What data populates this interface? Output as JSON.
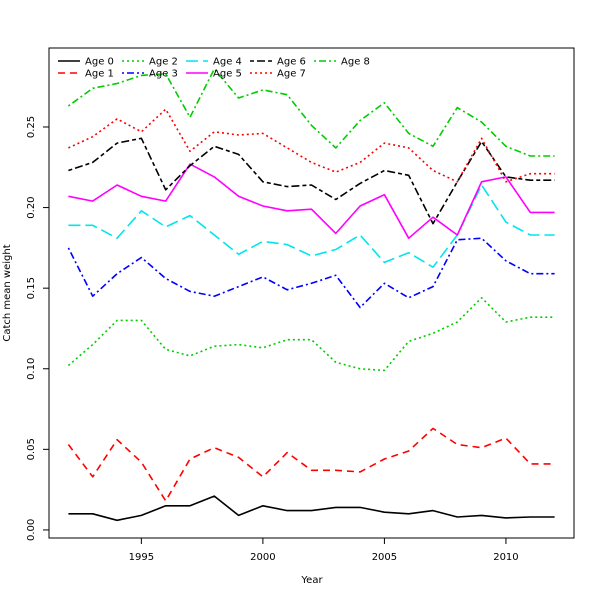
{
  "chart_data": {
    "type": "line",
    "title": "",
    "xlabel": "Year",
    "ylabel": "Catch mean weight",
    "xlim": [
      1991.2,
      2012.8
    ],
    "ylim": [
      -0.005,
      0.299
    ],
    "xticks": [
      1995,
      2000,
      2005,
      2010
    ],
    "yticks": [
      0.0,
      0.05,
      0.1,
      0.15,
      0.2,
      0.25
    ],
    "ytick_labels": [
      "0.00",
      "0.05",
      "0.10",
      "0.15",
      "0.20",
      "0.25"
    ],
    "grid": false,
    "legend_position": "top-left",
    "x": [
      1992,
      1993,
      1994,
      1995,
      1996,
      1997,
      1998,
      1999,
      2000,
      2001,
      2002,
      2003,
      2004,
      2005,
      2006,
      2007,
      2008,
      2009,
      2010,
      2011,
      2012
    ],
    "series": [
      {
        "name": "Age 0",
        "color": "#000000",
        "dash": "solid",
        "values": [
          0.01,
          0.01,
          0.006,
          0.009,
          0.015,
          0.015,
          0.021,
          0.009,
          0.015,
          0.012,
          0.012,
          0.014,
          0.014,
          0.011,
          0.01,
          0.012,
          0.008,
          0.009,
          0.0075,
          0.008,
          0.008
        ]
      },
      {
        "name": "Age 1",
        "color": "#ff0000",
        "dash": "dashed",
        "values": [
          0.053,
          0.033,
          0.056,
          0.042,
          0.018,
          0.044,
          0.051,
          0.045,
          0.033,
          0.048,
          0.037,
          0.037,
          0.036,
          0.044,
          0.049,
          0.063,
          0.053,
          0.051,
          0.057,
          0.041,
          0.041
        ]
      },
      {
        "name": "Age 2",
        "color": "#00cd00",
        "dash": "dotted",
        "values": [
          0.102,
          0.115,
          0.13,
          0.13,
          0.112,
          0.108,
          0.114,
          0.115,
          0.113,
          0.118,
          0.118,
          0.104,
          0.1,
          0.099,
          0.117,
          0.122,
          0.129,
          0.144,
          0.129,
          0.132,
          0.132
        ]
      },
      {
        "name": "Age 3",
        "color": "#0000ff",
        "dash": "dotdash",
        "values": [
          0.175,
          0.145,
          0.159,
          0.169,
          0.156,
          0.148,
          0.145,
          0.151,
          0.157,
          0.149,
          0.153,
          0.158,
          0.138,
          0.153,
          0.144,
          0.151,
          0.18,
          0.181,
          0.167,
          0.159,
          0.159
        ]
      },
      {
        "name": "Age 4",
        "color": "#00e5ee",
        "dash": "longdash",
        "values": [
          0.189,
          0.189,
          0.181,
          0.198,
          0.188,
          0.195,
          0.183,
          0.171,
          0.179,
          0.177,
          0.17,
          0.174,
          0.183,
          0.166,
          0.172,
          0.163,
          0.183,
          0.214,
          0.191,
          0.183,
          0.183
        ]
      },
      {
        "name": "Age 5",
        "color": "#ff00ff",
        "dash": "solid",
        "values": [
          0.207,
          0.204,
          0.214,
          0.207,
          0.204,
          0.227,
          0.219,
          0.207,
          0.201,
          0.198,
          0.199,
          0.184,
          0.201,
          0.208,
          0.181,
          0.194,
          0.183,
          0.216,
          0.219,
          0.197,
          0.197
        ]
      },
      {
        "name": "Age 6",
        "color": "#000000",
        "dash": "twodash",
        "values": [
          0.223,
          0.228,
          0.24,
          0.243,
          0.211,
          0.226,
          0.238,
          0.233,
          0.216,
          0.213,
          0.214,
          0.205,
          0.215,
          0.223,
          0.22,
          0.19,
          0.216,
          0.241,
          0.219,
          0.217,
          0.217
        ]
      },
      {
        "name": "Age 7",
        "color": "#ff0000",
        "dash": "dotted",
        "values": [
          0.237,
          0.244,
          0.255,
          0.247,
          0.261,
          0.235,
          0.247,
          0.245,
          0.246,
          0.237,
          0.228,
          0.222,
          0.228,
          0.24,
          0.237,
          0.223,
          0.216,
          0.243,
          0.216,
          0.221,
          0.221
        ]
      },
      {
        "name": "Age 8",
        "color": "#00cd00",
        "dash": "dotdash",
        "values": [
          0.263,
          0.274,
          0.277,
          0.282,
          0.283,
          0.256,
          0.286,
          0.268,
          0.273,
          0.27,
          0.251,
          0.237,
          0.254,
          0.265,
          0.246,
          0.238,
          0.262,
          0.253,
          0.238,
          0.232,
          0.232
        ]
      }
    ]
  }
}
